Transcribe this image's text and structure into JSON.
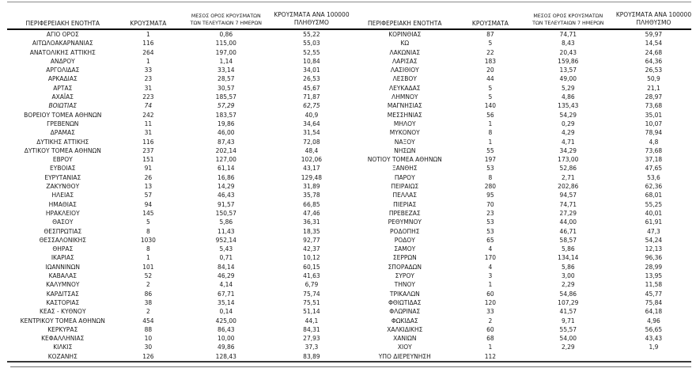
{
  "table": {
    "headers": {
      "region": "ΠΕΡΙΦΕΡΕΙΑΚΗ ΕΝΟΤΗΤΑ",
      "cases": "ΚΡΟΥΣΜΑΤΑ",
      "avg7_line1": "ΜΕΣΟΣ ΟΡΟΣ ΚΡΟΥΣΜΑΤΩΝ",
      "avg7_line2": "ΤΩΝ ΤΕΛΕΥΤΑΙΩΝ 7 ΗΜΕΡΩΝ",
      "per100k_line1": "ΚΡΟΥΣΜΑΤΑ ΑΝΑ 100000",
      "per100k_line2": "ΠΛΗΘΥΣΜΟ"
    },
    "left_rows": [
      {
        "region": "ΑΓΙΟ ΟΡΟΣ",
        "cases": "1",
        "avg7": "0,86",
        "per100k": "55,22"
      },
      {
        "region": "ΑΙΤΩΛΟΑΚΑΡΝΑΝΙΑΣ",
        "cases": "116",
        "avg7": "115,00",
        "per100k": "55,03"
      },
      {
        "region": "ΑΝΑΤΟΛΙΚΗΣ ΑΤΤΙΚΗΣ",
        "cases": "264",
        "avg7": "197,00",
        "per100k": "52,55"
      },
      {
        "region": "ΑΝΔΡΟΥ",
        "cases": "1",
        "avg7": "1,14",
        "per100k": "10,84"
      },
      {
        "region": "ΑΡΓΟΛΙΔΑΣ",
        "cases": "33",
        "avg7": "33,14",
        "per100k": "34,01"
      },
      {
        "region": "ΑΡΚΑΔΙΑΣ",
        "cases": "23",
        "avg7": "28,57",
        "per100k": "26,53"
      },
      {
        "region": "ΑΡΤΑΣ",
        "cases": "31",
        "avg7": "30,57",
        "per100k": "45,67"
      },
      {
        "region": "ΑΧΑΪΑΣ",
        "cases": "223",
        "avg7": "185,57",
        "per100k": "71,87"
      },
      {
        "region": "ΒΟΙΩΤΙΑΣ",
        "cases": "74",
        "avg7": "57,29",
        "per100k": "62,75",
        "italic": true
      },
      {
        "region": "ΒΟΡΕΙΟΥ ΤΟΜΕΑ ΑΘΗΝΩΝ",
        "cases": "242",
        "avg7": "183,57",
        "per100k": "40,9"
      },
      {
        "region": "ΓΡΕΒΕΝΩΝ",
        "cases": "11",
        "avg7": "19,86",
        "per100k": "34,64"
      },
      {
        "region": "ΔΡΑΜΑΣ",
        "cases": "31",
        "avg7": "46,00",
        "per100k": "31,54"
      },
      {
        "region": "ΔΥΤΙΚΗΣ ΑΤΤΙΚΗΣ",
        "cases": "116",
        "avg7": "87,43",
        "per100k": "72,08"
      },
      {
        "region": "ΔΥΤΙΚΟΥ ΤΟΜΕΑ ΑΘΗΝΩΝ",
        "cases": "237",
        "avg7": "202,14",
        "per100k": "48,4"
      },
      {
        "region": "ΕΒΡΟΥ",
        "cases": "151",
        "avg7": "127,00",
        "per100k": "102,06"
      },
      {
        "region": "ΕΥΒΟΙΑΣ",
        "cases": "91",
        "avg7": "61,14",
        "per100k": "43,17"
      },
      {
        "region": "ΕΥΡΥΤΑΝΙΑΣ",
        "cases": "26",
        "avg7": "16,86",
        "per100k": "129,48"
      },
      {
        "region": "ΖΑΚΥΝΘΟΥ",
        "cases": "13",
        "avg7": "14,29",
        "per100k": "31,89"
      },
      {
        "region": "ΗΛΕΙΑΣ",
        "cases": "57",
        "avg7": "46,43",
        "per100k": "35,78"
      },
      {
        "region": "ΗΜΑΘΙΑΣ",
        "cases": "94",
        "avg7": "91,57",
        "per100k": "66,85"
      },
      {
        "region": "ΗΡΑΚΛΕΙΟΥ",
        "cases": "145",
        "avg7": "150,57",
        "per100k": "47,46"
      },
      {
        "region": "ΘΑΣΟΥ",
        "cases": "5",
        "avg7": "5,86",
        "per100k": "36,31"
      },
      {
        "region": "ΘΕΣΠΡΩΤΙΑΣ",
        "cases": "8",
        "avg7": "11,43",
        "per100k": "18,35"
      },
      {
        "region": "ΘΕΣΣΑΛΟΝΙΚΗΣ",
        "cases": "1030",
        "avg7": "952,14",
        "per100k": "92,77"
      },
      {
        "region": "ΘΗΡΑΣ",
        "cases": "8",
        "avg7": "5,43",
        "per100k": "42,37"
      },
      {
        "region": "ΙΚΑΡΙΑΣ",
        "cases": "1",
        "avg7": "0,71",
        "per100k": "10,12"
      },
      {
        "region": "ΙΩΑΝΝΙΝΩΝ",
        "cases": "101",
        "avg7": "84,14",
        "per100k": "60,15"
      },
      {
        "region": "ΚΑΒΑΛΑΣ",
        "cases": "52",
        "avg7": "46,29",
        "per100k": "41,63"
      },
      {
        "region": "ΚΑΛΥΜΝΟΥ",
        "cases": "2",
        "avg7": "4,14",
        "per100k": "6,79"
      },
      {
        "region": "ΚΑΡΔΙΤΣΑΣ",
        "cases": "86",
        "avg7": "67,71",
        "per100k": "75,74"
      },
      {
        "region": "ΚΑΣΤΟΡΙΑΣ",
        "cases": "38",
        "avg7": "35,14",
        "per100k": "75,51"
      },
      {
        "region": "ΚΕΑΣ - ΚΥΘΝΟΥ",
        "cases": "2",
        "avg7": "0,14",
        "per100k": "51,14"
      },
      {
        "region": "ΚΕΝΤΡΙΚΟΥ ΤΟΜΕΑ ΑΘΗΝΩΝ",
        "cases": "454",
        "avg7": "425,00",
        "per100k": "44,1"
      },
      {
        "region": "ΚΕΡΚΥΡΑΣ",
        "cases": "88",
        "avg7": "86,43",
        "per100k": "84,31"
      },
      {
        "region": "ΚΕΦΑΛΛΗΝΙΑΣ",
        "cases": "10",
        "avg7": "10,00",
        "per100k": "27,93"
      },
      {
        "region": "ΚΙΛΚΙΣ",
        "cases": "30",
        "avg7": "49,86",
        "per100k": "37,3"
      },
      {
        "region": "ΚΟΖΑΝΗΣ",
        "cases": "126",
        "avg7": "128,43",
        "per100k": "83,89"
      }
    ],
    "right_rows": [
      {
        "region": "ΚΟΡΙΝΘΙΑΣ",
        "cases": "87",
        "avg7": "74,71",
        "per100k": "59,97"
      },
      {
        "region": "ΚΩ",
        "cases": "5",
        "avg7": "8,43",
        "per100k": "14,54"
      },
      {
        "region": "ΛΑΚΩΝΙΑΣ",
        "cases": "22",
        "avg7": "20,43",
        "per100k": "24,68"
      },
      {
        "region": "ΛΑΡΙΣΑΣ",
        "cases": "183",
        "avg7": "159,86",
        "per100k": "64,36"
      },
      {
        "region": "ΛΑΣΙΘΙΟΥ",
        "cases": "20",
        "avg7": "13,57",
        "per100k": "26,53"
      },
      {
        "region": "ΛΕΣΒΟΥ",
        "cases": "44",
        "avg7": "49,00",
        "per100k": "50,9"
      },
      {
        "region": "ΛΕΥΚΑΔΑΣ",
        "cases": "5",
        "avg7": "5,29",
        "per100k": "21,1"
      },
      {
        "region": "ΛΗΜΝΟΥ",
        "cases": "5",
        "avg7": "4,86",
        "per100k": "28,97"
      },
      {
        "region": "ΜΑΓΝΗΣΙΑΣ",
        "cases": "140",
        "avg7": "135,43",
        "per100k": "73,68"
      },
      {
        "region": "ΜΕΣΣΗΝΙΑΣ",
        "cases": "56",
        "avg7": "54,29",
        "per100k": "35,01"
      },
      {
        "region": "ΜΗΛΟΥ",
        "cases": "1",
        "avg7": "0,29",
        "per100k": "10,07"
      },
      {
        "region": "ΜΥΚΟΝΟΥ",
        "cases": "8",
        "avg7": "4,29",
        "per100k": "78,94"
      },
      {
        "region": "ΝΑΞΟΥ",
        "cases": "1",
        "avg7": "4,71",
        "per100k": "4,8"
      },
      {
        "region": "ΝΗΣΩΝ",
        "cases": "55",
        "avg7": "34,29",
        "per100k": "73,68"
      },
      {
        "region": "ΝΟΤΙΟΥ ΤΟΜΕΑ ΑΘΗΝΩΝ",
        "cases": "197",
        "avg7": "173,00",
        "per100k": "37,18"
      },
      {
        "region": "ΞΑΝΘΗΣ",
        "cases": "53",
        "avg7": "52,86",
        "per100k": "47,65"
      },
      {
        "region": "ΠΑΡΟΥ",
        "cases": "8",
        "avg7": "2,71",
        "per100k": "53,6"
      },
      {
        "region": "ΠΕΙΡΑΙΩΣ",
        "cases": "280",
        "avg7": "202,86",
        "per100k": "62,36"
      },
      {
        "region": "ΠΕΛΛΑΣ",
        "cases": "95",
        "avg7": "94,57",
        "per100k": "68,01"
      },
      {
        "region": "ΠΙΕΡΙΑΣ",
        "cases": "70",
        "avg7": "74,71",
        "per100k": "55,25"
      },
      {
        "region": "ΠΡΕΒΕΖΑΣ",
        "cases": "23",
        "avg7": "27,29",
        "per100k": "40,01"
      },
      {
        "region": "ΡΕΘΥΜΝΟΥ",
        "cases": "53",
        "avg7": "44,00",
        "per100k": "61,91"
      },
      {
        "region": "ΡΟΔΟΠΗΣ",
        "cases": "53",
        "avg7": "46,71",
        "per100k": "47,3"
      },
      {
        "region": "ΡΟΔΟΥ",
        "cases": "65",
        "avg7": "58,57",
        "per100k": "54,24"
      },
      {
        "region": "ΣΑΜΟΥ",
        "cases": "4",
        "avg7": "5,86",
        "per100k": "12,13"
      },
      {
        "region": "ΣΕΡΡΩΝ",
        "cases": "170",
        "avg7": "134,14",
        "per100k": "96,36"
      },
      {
        "region": "ΣΠΟΡΑΔΩΝ",
        "cases": "4",
        "avg7": "5,86",
        "per100k": "28,99"
      },
      {
        "region": "ΣΥΡΟΥ",
        "cases": "3",
        "avg7": "3,00",
        "per100k": "13,95"
      },
      {
        "region": "ΤΗΝΟΥ",
        "cases": "1",
        "avg7": "2,29",
        "per100k": "11,58"
      },
      {
        "region": "ΤΡΙΚΑΛΩΝ",
        "cases": "60",
        "avg7": "54,86",
        "per100k": "45,77"
      },
      {
        "region": "ΦΘΙΩΤΙΔΑΣ",
        "cases": "120",
        "avg7": "107,29",
        "per100k": "75,84"
      },
      {
        "region": "ΦΛΩΡΙΝΑΣ",
        "cases": "33",
        "avg7": "41,57",
        "per100k": "64,18"
      },
      {
        "region": "ΦΩΚΙΔΑΣ",
        "cases": "2",
        "avg7": "9,71",
        "per100k": "4,96"
      },
      {
        "region": "ΧΑΛΚΙΔΙΚΗΣ",
        "cases": "60",
        "avg7": "55,57",
        "per100k": "56,65"
      },
      {
        "region": "ΧΑΝΙΩΝ",
        "cases": "68",
        "avg7": "54,00",
        "per100k": "43,43"
      },
      {
        "region": "ΧΙΟΥ",
        "cases": "1",
        "avg7": "2,29",
        "per100k": "1,9"
      },
      {
        "region": "ΥΠΟ ΔΙΕΡΕΥΝΗΣΗ",
        "cases": "112",
        "avg7": "",
        "per100k": ""
      }
    ]
  }
}
